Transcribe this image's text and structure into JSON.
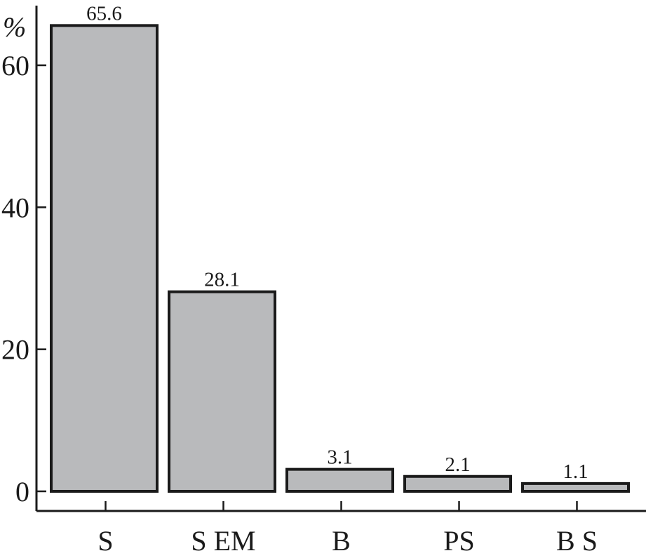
{
  "chart_data": {
    "type": "bar",
    "ylabel": "%",
    "ylim": [
      0,
      68
    ],
    "yticks": [
      0,
      20,
      40,
      60
    ],
    "categories": [
      "S",
      "S EM",
      "B",
      "PS",
      "B S"
    ],
    "values": [
      65.6,
      28.1,
      3.1,
      2.1,
      1.1
    ],
    "data_labels": [
      "65.6",
      "28.1",
      "3.1",
      "2.1",
      "1.1"
    ],
    "bar_color": "#b9babc",
    "grid": false,
    "legend": "none"
  }
}
